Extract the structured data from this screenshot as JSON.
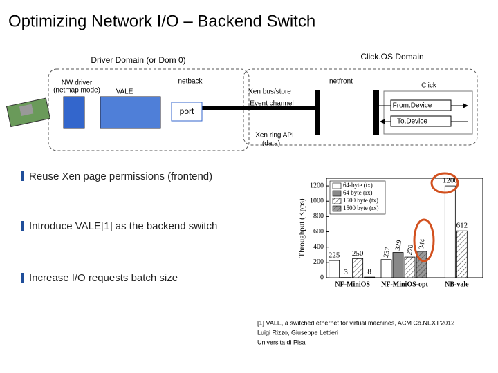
{
  "title": "Optimizing Network I/O – Backend Switch",
  "diagram": {
    "driver_domain": "Driver Domain (or Dom 0)",
    "clickos_domain": "Click.OS Domain",
    "nw_driver": [
      "NW driver",
      "(netmap mode)"
    ],
    "vale": "VALE",
    "netback": "netback",
    "port": "port",
    "netfront": "netfront",
    "xen_bus": "Xen bus/store",
    "event_channel": "Event channel",
    "click": "Click",
    "from_device": "From.Device",
    "to_device": "To.Device",
    "xen_ring": [
      "Xen ring API",
      "(data)"
    ]
  },
  "bullets": [
    "Reuse Xen page permissions (frontend)",
    "Introduce VALE[1] as the backend switch",
    "Increase I/O requests batch size"
  ],
  "footnote": [
    "[1] VALE, a switched ethernet for virtual machines, ACM Co.NEXT'2012",
    "Luigi Rizzo, Giuseppe Lettieri",
    "Universita di Pisa"
  ],
  "chart_data": {
    "type": "bar",
    "y_label": "Throughput (Kpps)",
    "categories": [
      "NF-MiniOS",
      "NF-MiniOS-opt",
      "NB-vale"
    ],
    "series": [
      {
        "name": "64-byte (tx)",
        "color": "#ffffff",
        "values": [
          225,
          237,
          1200
        ]
      },
      {
        "name": "64 byte (rx)",
        "color": "#888888",
        "values": [
          3,
          329,
          null
        ]
      },
      {
        "name": "1500 byte (tx)",
        "color": "#ffffff",
        "pattern": "hatch",
        "values": [
          250,
          270,
          612
        ]
      },
      {
        "name": "1500 byte (rx)",
        "color": "#999999",
        "pattern": "hatch",
        "values": [
          8,
          344,
          null
        ]
      }
    ],
    "ylim": [
      0,
      1300
    ],
    "yticks": [
      0,
      200,
      400,
      600,
      800,
      1000,
      1200
    ]
  }
}
